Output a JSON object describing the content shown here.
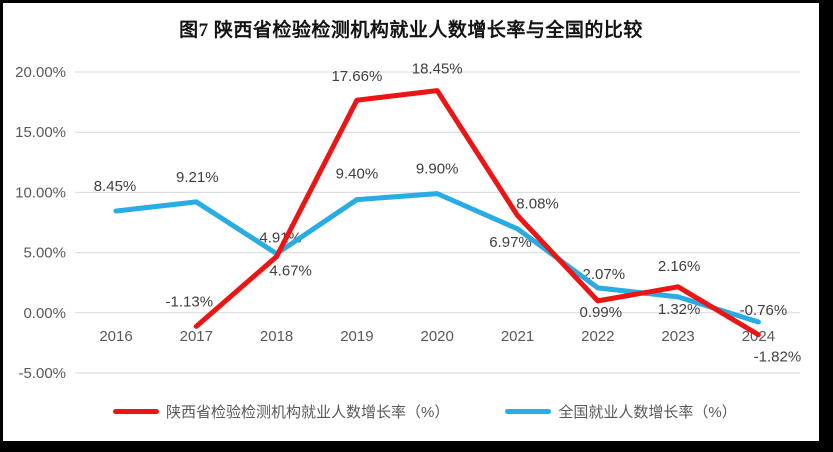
{
  "title": "图7 陕西省检验检测机构就业人数增长率与全国的比较",
  "chart_data": {
    "type": "line",
    "categories": [
      "2016",
      "2017",
      "2018",
      "2019",
      "2020",
      "2021",
      "2022",
      "2023",
      "2024"
    ],
    "series": [
      {
        "name": "陕西省检验检测机构就业人数增长率（%）",
        "color": "#ec1515",
        "values": [
          null,
          -1.13,
          4.67,
          17.66,
          18.45,
          8.08,
          0.99,
          2.16,
          -1.82
        ],
        "point_labels": [
          "",
          "-1.13%",
          "4.67%",
          "17.66%",
          "18.45%",
          "8.08%",
          "0.99%",
          "2.16%",
          "-1.82%"
        ],
        "label_offsets": [
          [
            0,
            0
          ],
          [
            -7,
            -20
          ],
          [
            14,
            19
          ],
          [
            0,
            -19
          ],
          [
            0,
            -17
          ],
          [
            20,
            -7
          ],
          [
            3,
            16
          ],
          [
            1,
            -16
          ],
          [
            19,
            27
          ]
        ]
      },
      {
        "name": "全国就业人数增长率（%）",
        "color": "#29ace3",
        "values": [
          8.45,
          9.21,
          4.91,
          9.4,
          9.9,
          6.97,
          2.07,
          1.32,
          -0.76
        ],
        "point_labels": [
          "8.45%",
          "9.21%",
          "4.91%",
          "9.40%",
          "9.90%",
          "6.97%",
          "2.07%",
          "1.32%",
          "-0.76%"
        ],
        "label_offsets": [
          [
            -1,
            -20
          ],
          [
            1,
            -20
          ],
          [
            4,
            -11
          ],
          [
            0,
            -21
          ],
          [
            0,
            -20
          ],
          [
            -7,
            18
          ],
          [
            6,
            -9
          ],
          [
            1,
            17
          ],
          [
            5,
            -7
          ]
        ]
      }
    ],
    "y_axis": {
      "min": -5,
      "max": 20,
      "step": 5,
      "tick_labels": [
        "20.00%",
        "15.00%",
        "10.00%",
        "5.00%",
        "0.00%",
        "-5.00%"
      ]
    },
    "grid": true,
    "legend_position": "bottom"
  },
  "colors": {
    "grid_line": "#d9d9d9",
    "axis_text": "#595959",
    "data_label_text": "#3f3f3f",
    "title_text": "#141414",
    "series_red": "#ec1515",
    "series_blue": "#29ace3",
    "frame_border": "#000000"
  }
}
